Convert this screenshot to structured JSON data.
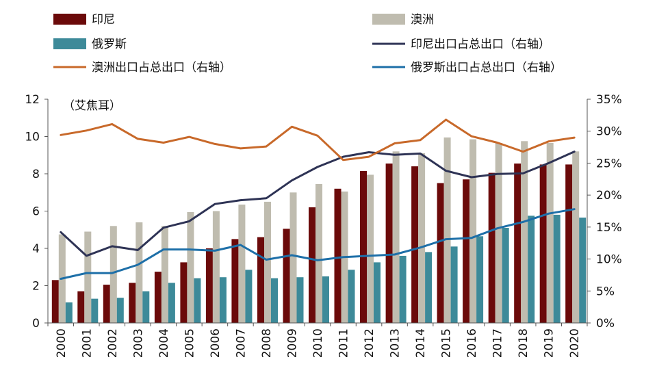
{
  "chart_data": {
    "type": "bar",
    "y_unit_label": "（艾焦耳）",
    "categories": [
      "2000",
      "2001",
      "2002",
      "2003",
      "2004",
      "2005",
      "2006",
      "2007",
      "2008",
      "2009",
      "2010",
      "2011",
      "2012",
      "2013",
      "2014",
      "2015",
      "2016",
      "2017",
      "2018",
      "2019",
      "2020"
    ],
    "bar_series": [
      {
        "name": "印尼",
        "color": "#6B0A0A",
        "values": [
          2.3,
          1.7,
          2.05,
          2.15,
          2.75,
          3.25,
          4.0,
          4.5,
          4.6,
          5.05,
          6.2,
          7.2,
          8.15,
          8.55,
          8.4,
          7.5,
          7.7,
          8.05,
          8.55,
          8.5,
          8.5
        ]
      },
      {
        "name": "澳洲",
        "color": "#BFBCAF",
        "values": [
          4.75,
          4.9,
          5.2,
          5.4,
          5.2,
          5.95,
          6.0,
          6.35,
          6.5,
          7.0,
          7.45,
          7.05,
          7.95,
          9.2,
          9.1,
          9.95,
          9.85,
          9.65,
          9.75,
          9.65,
          9.2
        ]
      },
      {
        "name": "俄罗斯",
        "color": "#3D8A99",
        "values": [
          1.1,
          1.3,
          1.35,
          1.7,
          2.15,
          2.4,
          2.45,
          2.85,
          2.4,
          2.45,
          2.5,
          2.85,
          3.25,
          3.6,
          3.8,
          4.1,
          4.65,
          5.1,
          5.75,
          5.8,
          5.65
        ]
      }
    ],
    "line_series": [
      {
        "name": "印尼出口占总出口（右轴）",
        "color": "#2E3355",
        "values": [
          14.2,
          10.5,
          12.0,
          11.4,
          14.9,
          15.9,
          18.6,
          19.2,
          19.5,
          22.3,
          24.4,
          26.0,
          26.7,
          26.3,
          26.5,
          23.8,
          22.8,
          23.3,
          23.4,
          25.0,
          26.8
        ]
      },
      {
        "name": "澳洲出口占总出口（右轴）",
        "color": "#C8692A",
        "values": [
          29.4,
          30.1,
          31.1,
          28.8,
          28.2,
          29.1,
          28.0,
          27.3,
          27.6,
          30.7,
          29.3,
          25.5,
          26.0,
          28.1,
          28.6,
          31.8,
          29.2,
          28.2,
          26.8,
          28.4,
          29.0
        ]
      },
      {
        "name": "俄罗斯出口占总出口（右轴）",
        "color": "#1D6FA8",
        "values": [
          6.9,
          7.8,
          7.8,
          9.1,
          11.5,
          11.5,
          11.3,
          12.2,
          9.9,
          10.6,
          9.8,
          10.3,
          10.5,
          10.7,
          11.8,
          13.1,
          13.3,
          14.8,
          15.8,
          17.1,
          17.8
        ]
      }
    ],
    "y_left": {
      "min": 0,
      "max": 12,
      "ticks": [
        "0",
        "2",
        "4",
        "6",
        "8",
        "10",
        "12"
      ]
    },
    "y_right": {
      "min": 0,
      "max": 35,
      "ticks": [
        "0%",
        "5%",
        "10%",
        "15%",
        "20%",
        "25%",
        "30%",
        "35%"
      ]
    },
    "legend_position": "top",
    "grid": false
  }
}
